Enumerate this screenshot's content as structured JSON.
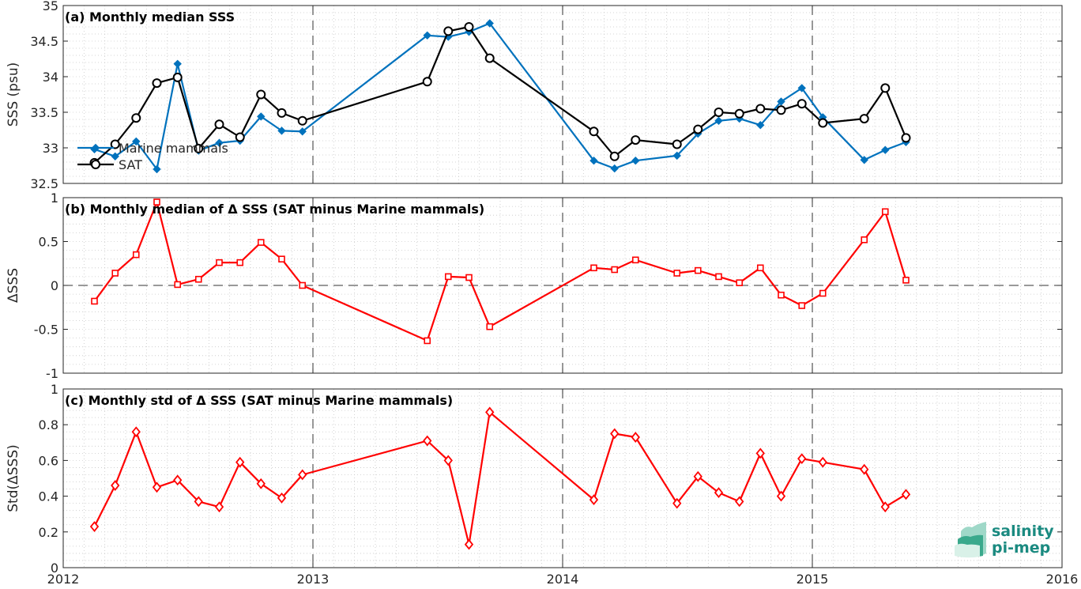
{
  "chart_data": [
    {
      "type": "line",
      "title": "(a) Monthly median SSS",
      "ylabel": "SSS (psu)",
      "ylim": [
        32.5,
        35
      ],
      "xlim": [
        2012,
        2016
      ],
      "yticks": [
        "32.5",
        "33",
        "33.5",
        "34",
        "34.5",
        "35"
      ],
      "grid": "minor dotted, dashed yearly lines",
      "legend_position": "middle-left",
      "series": [
        {
          "name": "Marine mammals",
          "color": "#0072BD",
          "marker": "diamond",
          "x": [
            2012.125,
            2012.208,
            2012.292,
            2012.375,
            2012.458,
            2012.542,
            2012.625,
            2012.708,
            2012.792,
            2012.875,
            2012.958,
            2013.458,
            2013.542,
            2013.625,
            2013.708,
            2014.125,
            2014.208,
            2014.292,
            2014.458,
            2014.542,
            2014.625,
            2014.708,
            2014.792,
            2014.875,
            2014.958,
            2015.042,
            2015.208,
            2015.292,
            2015.375
          ],
          "y": [
            32.98,
            32.88,
            33.09,
            32.7,
            34.18,
            32.96,
            33.07,
            33.1,
            33.44,
            33.24,
            33.23,
            34.58,
            34.56,
            34.63,
            34.75,
            32.82,
            32.71,
            32.82,
            32.89,
            33.2,
            33.38,
            33.41,
            33.32,
            33.65,
            33.84,
            33.43,
            32.83,
            32.97,
            33.08
          ]
        },
        {
          "name": "SAT",
          "color": "#000000",
          "marker": "circle",
          "x": [
            2012.125,
            2012.208,
            2012.292,
            2012.375,
            2012.458,
            2012.542,
            2012.625,
            2012.708,
            2012.792,
            2012.875,
            2012.958,
            2013.458,
            2013.542,
            2013.625,
            2013.708,
            2014.125,
            2014.208,
            2014.292,
            2014.458,
            2014.542,
            2014.625,
            2014.708,
            2014.792,
            2014.875,
            2014.958,
            2015.042,
            2015.208,
            2015.292,
            2015.375
          ],
          "y": [
            32.79,
            33.05,
            33.42,
            33.91,
            33.99,
            32.99,
            33.33,
            33.15,
            33.75,
            33.49,
            33.38,
            33.93,
            34.64,
            34.7,
            34.26,
            33.23,
            32.88,
            33.11,
            33.05,
            33.26,
            33.5,
            33.48,
            33.55,
            33.53,
            33.62,
            33.35,
            33.41,
            33.84,
            33.14
          ]
        }
      ]
    },
    {
      "type": "line",
      "title": "(b) Monthly median of Δ SSS (SAT minus Marine mammals)",
      "ylabel": "ΔSSS",
      "ylim": [
        -1,
        1
      ],
      "xlim": [
        2012,
        2016
      ],
      "yticks": [
        "-1",
        "-0.5",
        "0",
        "0.5",
        "1"
      ],
      "series": [
        {
          "color": "#FF0000",
          "marker": "square",
          "x": [
            2012.125,
            2012.208,
            2012.292,
            2012.375,
            2012.458,
            2012.542,
            2012.625,
            2012.708,
            2012.792,
            2012.875,
            2012.958,
            2013.458,
            2013.542,
            2013.625,
            2013.708,
            2014.125,
            2014.208,
            2014.292,
            2014.458,
            2014.542,
            2014.625,
            2014.708,
            2014.792,
            2014.875,
            2014.958,
            2015.042,
            2015.208,
            2015.292,
            2015.375
          ],
          "y": [
            -0.18,
            0.14,
            0.35,
            0.95,
            0.01,
            0.07,
            0.26,
            0.26,
            0.49,
            0.3,
            0.0,
            -0.63,
            0.1,
            0.09,
            -0.47,
            0.2,
            0.18,
            0.29,
            0.14,
            0.17,
            0.1,
            0.03,
            0.2,
            -0.11,
            -0.23,
            -0.09,
            0.52,
            0.84,
            0.06
          ]
        }
      ]
    },
    {
      "type": "line",
      "title": "(c) Monthly std of Δ SSS (SAT minus Marine mammals)",
      "ylabel": "Std(ΔSSS)",
      "ylim": [
        0,
        1
      ],
      "xlim": [
        2012,
        2016
      ],
      "yticks": [
        "0",
        "0.2",
        "0.4",
        "0.6",
        "0.8",
        "1"
      ],
      "xticks": [
        "2012",
        "2013",
        "2014",
        "2015",
        "2016"
      ],
      "series": [
        {
          "color": "#FF0000",
          "marker": "diamond",
          "x": [
            2012.125,
            2012.208,
            2012.292,
            2012.375,
            2012.458,
            2012.542,
            2012.625,
            2012.708,
            2012.792,
            2012.875,
            2012.958,
            2013.458,
            2013.542,
            2013.625,
            2013.708,
            2014.125,
            2014.208,
            2014.292,
            2014.458,
            2014.542,
            2014.625,
            2014.708,
            2014.792,
            2014.875,
            2014.958,
            2015.042,
            2015.208,
            2015.292,
            2015.375
          ],
          "y": [
            0.23,
            0.46,
            0.76,
            0.45,
            0.49,
            0.37,
            0.34,
            0.59,
            0.47,
            0.39,
            0.52,
            0.71,
            0.6,
            0.13,
            0.87,
            0.38,
            0.75,
            0.73,
            0.36,
            0.51,
            0.42,
            0.37,
            0.64,
            0.4,
            0.61,
            0.59,
            0.55,
            0.34,
            0.41
          ]
        }
      ]
    }
  ],
  "logo": {
    "line1": "salinity",
    "line2": "pi-mep",
    "color": "#1a8a80"
  }
}
